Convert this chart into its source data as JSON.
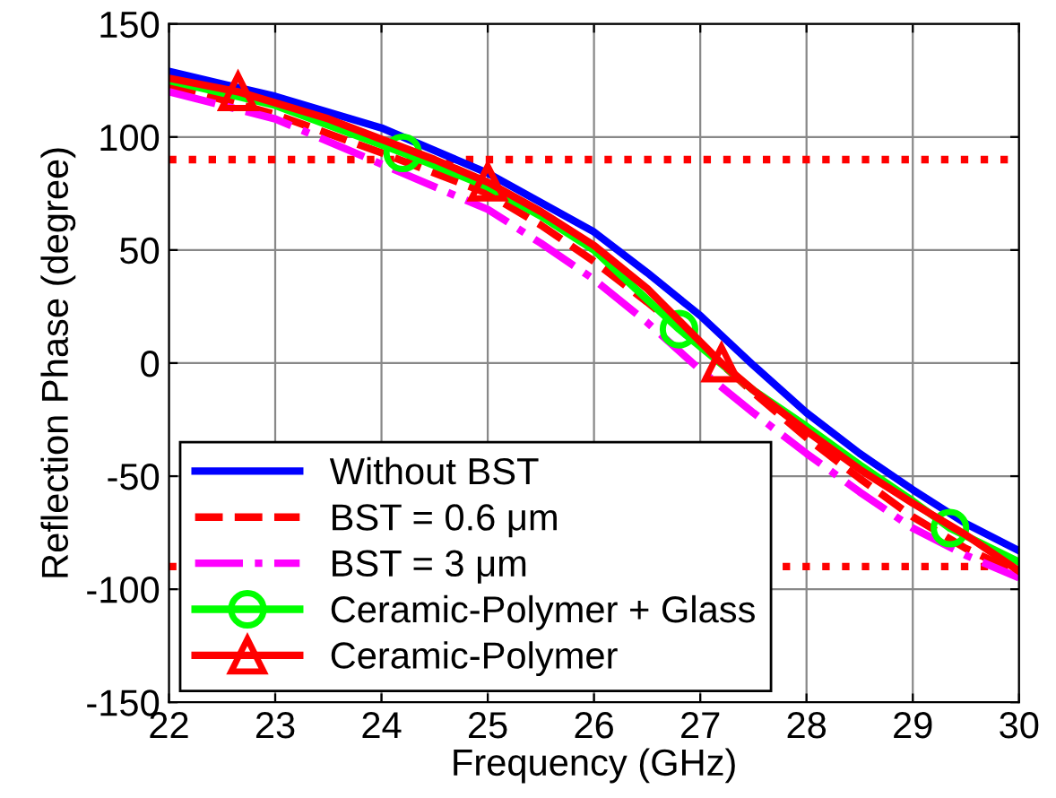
{
  "chart_data": {
    "type": "line",
    "xlabel": "Frequency (GHz)",
    "ylabel": "Reflection Phase (degree)",
    "xlim": [
      22,
      30
    ],
    "xticks": [
      22,
      23,
      24,
      25,
      26,
      27,
      28,
      29,
      30
    ],
    "ylim": [
      -150,
      150
    ],
    "yticks": [
      -150,
      -100,
      -50,
      0,
      50,
      100,
      150
    ],
    "grid": true,
    "legend": "bottom left",
    "series": [
      {
        "name": "Without BST",
        "color": "#0000ff",
        "line_style": "solid",
        "marker": "none",
        "x": [
          22,
          23,
          24,
          25,
          26,
          26.5,
          27,
          27.5,
          28,
          28.5,
          29,
          29.5,
          30
        ],
        "values": [
          129,
          118,
          104,
          84,
          58,
          40,
          21,
          -1,
          -22,
          -40,
          -56,
          -71,
          -83
        ]
      },
      {
        "name": "BST = 0.6 μm",
        "color": "#ff0000",
        "line_style": "dashed",
        "marker": "none",
        "x": [
          22,
          23,
          24,
          25,
          25.5,
          26,
          26.5,
          27,
          27.5,
          28,
          28.5,
          29,
          29.5,
          30
        ],
        "values": [
          123,
          110,
          93,
          75,
          61,
          45,
          27,
          8,
          -13,
          -33,
          -51,
          -68,
          -82,
          -93
        ]
      },
      {
        "name": "BST = 3 μm",
        "color": "#ff00ff",
        "line_style": "dashdot",
        "marker": "none",
        "x": [
          22,
          23,
          24,
          25,
          25.5,
          26,
          26.5,
          27,
          27.5,
          28,
          28.5,
          29,
          29.5,
          30
        ],
        "values": [
          120,
          108,
          88,
          68,
          53,
          37,
          18,
          -3,
          -22,
          -40,
          -57,
          -73,
          -85,
          -95
        ]
      },
      {
        "name": "Ceramic-Polymer + Glass",
        "color": "#00ff00",
        "line_style": "solid",
        "marker": "none",
        "x": [
          22,
          23,
          24.2,
          25,
          25.5,
          26,
          26.8,
          27.5,
          28,
          28.5,
          29,
          29.35,
          30
        ],
        "values": [
          125,
          114,
          93,
          78,
          65,
          50,
          15,
          -12,
          -28,
          -45,
          -61,
          -73,
          -88
        ]
      },
      {
        "type": "scatter",
        "color": "#00ff00",
        "marker": "circle",
        "x": [
          24.2,
          26.8,
          29.35
        ],
        "values": [
          93,
          15,
          -73
        ]
      },
      {
        "name": "Ceramic-Polymer",
        "color": "#ff0000",
        "line_style": "solid",
        "marker": "none",
        "x": [
          22,
          22.65,
          23.5,
          24.5,
          25,
          25.5,
          26,
          26.5,
          27.2,
          27.5,
          28,
          28.5,
          29,
          29.5,
          30
        ],
        "values": [
          126,
          120,
          108,
          90,
          80,
          67,
          52,
          33,
          0,
          -12,
          -30,
          -47,
          -62,
          -76,
          -92
        ]
      },
      {
        "type": "scatter",
        "color": "#ff0000",
        "marker": "triangle",
        "x": [
          22.65,
          25,
          27.2
        ],
        "values": [
          120,
          80,
          0
        ]
      }
    ],
    "ref_lines": [
      {
        "axis": "y",
        "value": 90,
        "color": "#ff0000",
        "line_style": "dotted"
      },
      {
        "axis": "y",
        "value": -90,
        "color": "#ff0000",
        "line_style": "dotted"
      }
    ]
  }
}
